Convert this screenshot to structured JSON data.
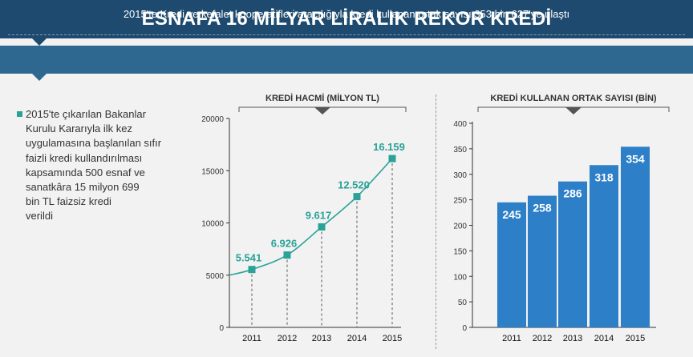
{
  "header": {
    "title": "ESNAFA 16 MİLYAR LİRALIK REKOR KREDİ",
    "subtitle": "2015'te Kredi ve kefalet kooperatifleri aracılığıyla kredi kullanan ortak sayısı 353 bin 627'ye ulaştı"
  },
  "note": {
    "lines": [
      "2015'te çıkarılan Bakanlar",
      "Kurulu Kararıyla ilk kez",
      "uygulamasına başlanılan sıfır",
      "faizli kredi kullandırılması",
      "kapsamında 500 esnaf ve",
      "sanatkâra 15 milyon 699",
      "bin TL faizsiz kredi",
      "verildi"
    ]
  },
  "colors": {
    "header_bg": "#1d4a6e",
    "subheader_bg": "#2e6890",
    "line": "#2aa297",
    "bar": "#2d7fc8",
    "bar_label": "#ffffff",
    "text": "#333333"
  },
  "chart_data": [
    {
      "type": "line",
      "title": "KREDİ HACMİ (MİLYON TL)",
      "categories": [
        "2011",
        "2012",
        "2013",
        "2014",
        "2015"
      ],
      "values": [
        5541,
        6926,
        9617,
        12520,
        16159
      ],
      "value_labels": [
        "5.541",
        "6.926",
        "9.617",
        "12.520",
        "16.159"
      ],
      "yticks": [
        0,
        5000,
        10000,
        15000,
        20000
      ],
      "ylim": [
        0,
        20000
      ],
      "marker": "square",
      "drop_lines": true,
      "grid": false
    },
    {
      "type": "bar",
      "title": "KREDİ KULLANAN ORTAK SAYISI (BİN)",
      "categories": [
        "2011",
        "2012",
        "2013",
        "2014",
        "2015"
      ],
      "values": [
        245,
        258,
        286,
        318,
        354
      ],
      "value_labels": [
        "245",
        "258",
        "286",
        "318",
        "354"
      ],
      "yticks": [
        0,
        50,
        100,
        150,
        200,
        250,
        300,
        350,
        400
      ],
      "ylim": [
        0,
        400
      ],
      "grid": false
    }
  ]
}
